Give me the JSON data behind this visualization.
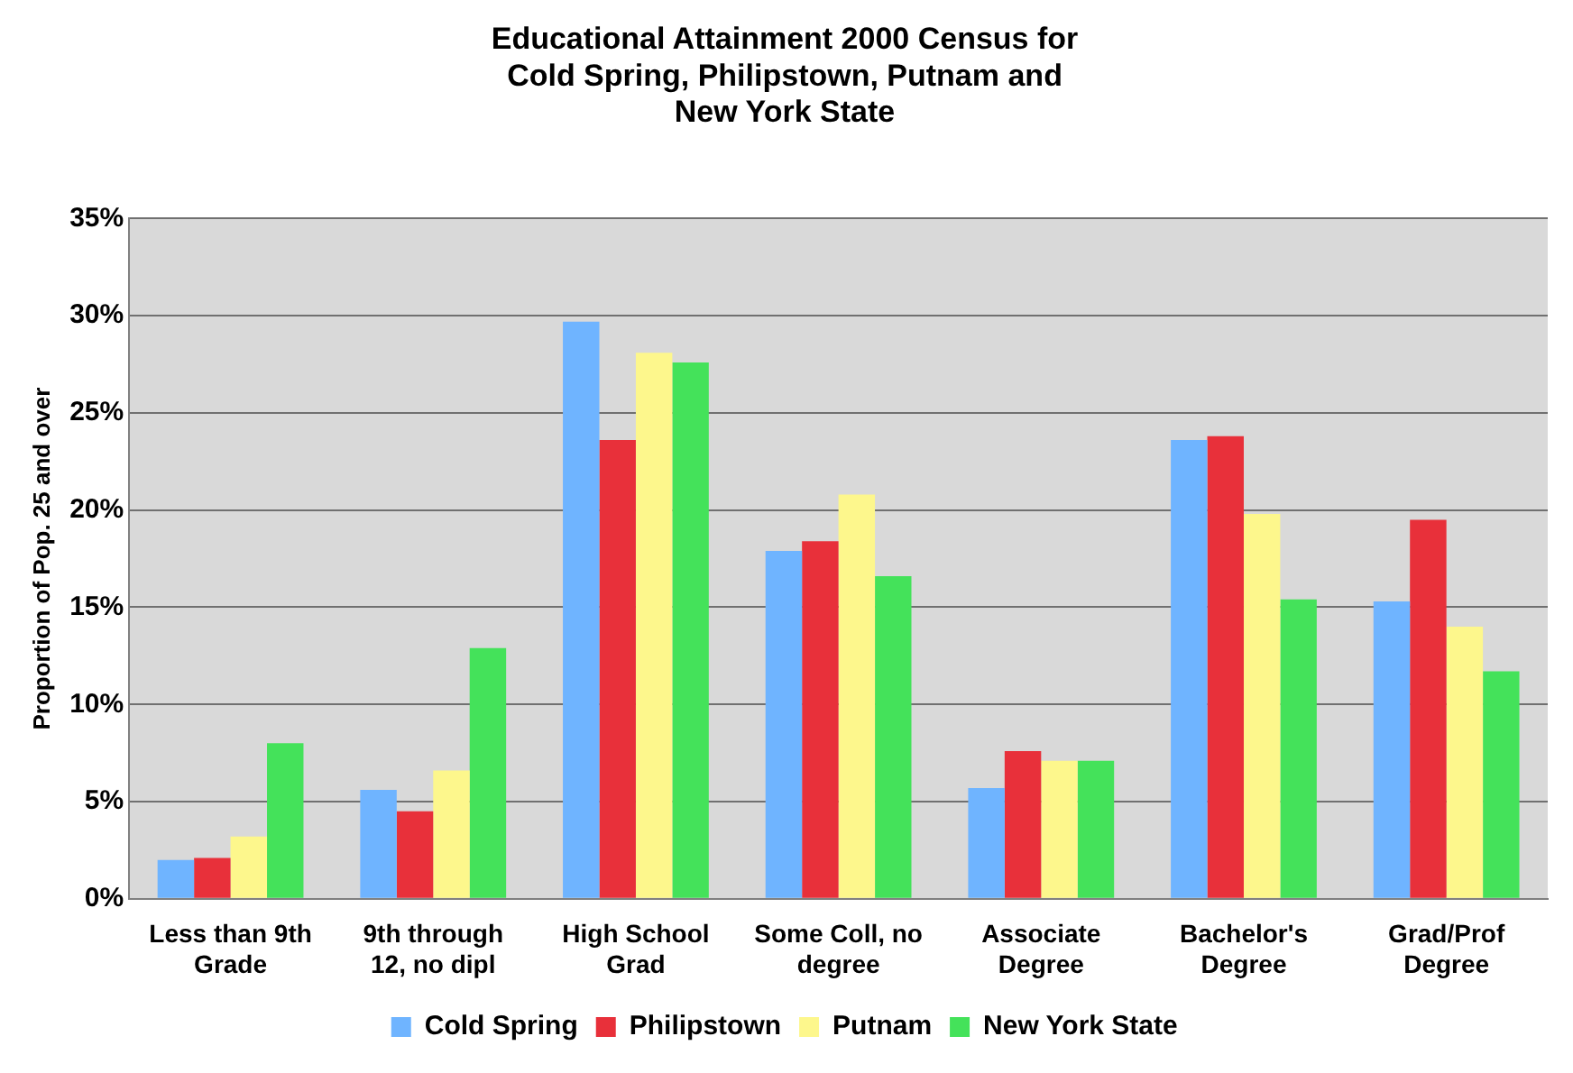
{
  "chart_data": {
    "type": "bar",
    "title": "Educational Attainment 2000 Census for Cold Spring, Philipstown, Putnam and New York State",
    "ylabel": "Proportion of Pop. 25 and over",
    "categories": [
      "Less than 9th Grade",
      "9th through 12, no dipl",
      "High School Grad",
      "Some Coll, no degree",
      "Associate Degree",
      "Bachelor's Degree",
      "Grad/Prof Degree"
    ],
    "series": [
      {
        "name": "Cold Spring",
        "color": "#6fb4ff",
        "values": [
          2.0,
          5.6,
          29.7,
          17.9,
          5.7,
          23.6,
          15.3
        ]
      },
      {
        "name": "Philipstown",
        "color": "#e8303a",
        "values": [
          2.1,
          4.5,
          23.6,
          18.4,
          7.6,
          23.8,
          19.5
        ]
      },
      {
        "name": "Putnam",
        "color": "#fdf78c",
        "values": [
          3.2,
          6.6,
          28.1,
          20.8,
          7.1,
          19.8,
          14.0
        ]
      },
      {
        "name": "New York State",
        "color": "#44e25a",
        "values": [
          8.0,
          12.9,
          27.6,
          16.6,
          7.1,
          15.4,
          11.7
        ]
      }
    ],
    "ylim": [
      0,
      35
    ],
    "yticks": [
      {
        "value": 0,
        "label": "0%"
      },
      {
        "value": 5,
        "label": "5%"
      },
      {
        "value": 10,
        "label": "10%"
      },
      {
        "value": 15,
        "label": "15%"
      },
      {
        "value": 20,
        "label": "20%"
      },
      {
        "value": 25,
        "label": "25%"
      },
      {
        "value": 30,
        "label": "30%"
      },
      {
        "value": 35,
        "label": "35%"
      }
    ],
    "grid": "y",
    "legend": "bottom"
  }
}
